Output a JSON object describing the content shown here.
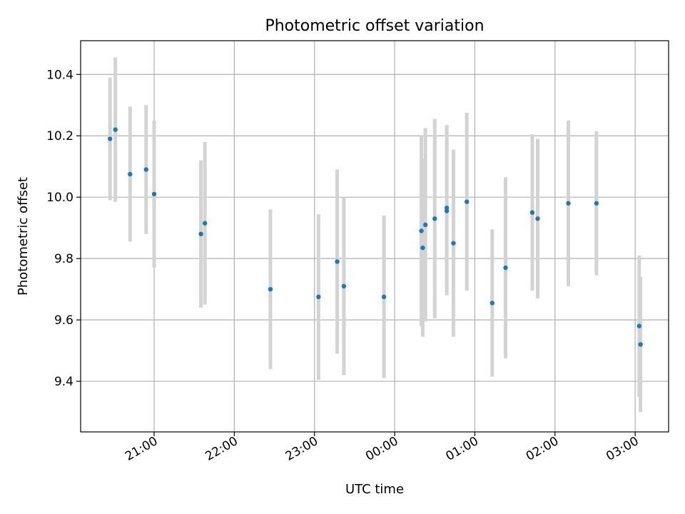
{
  "chart_data": {
    "type": "scatter",
    "title": "Photometric offset variation",
    "xlabel": "UTC time",
    "ylabel": "Photometric offset",
    "x_ticks": [
      "21:00",
      "22:00",
      "23:00",
      "00:00",
      "01:00",
      "02:00",
      "03:00"
    ],
    "y_ticks": [
      "9.4",
      "9.6",
      "9.8",
      "10.0",
      "10.2",
      "10.4"
    ],
    "xlim": [
      "20:05",
      "03:25"
    ],
    "ylim": [
      9.235,
      10.51
    ],
    "grid": true,
    "point_color": "#1f77b4",
    "errorbar_color": "#d3d3d3",
    "points": [
      {
        "x": "20:27",
        "y": 10.19,
        "yerr": 0.2
      },
      {
        "x": "20:31",
        "y": 10.22,
        "yerr": 0.235
      },
      {
        "x": "20:42",
        "y": 10.075,
        "yerr": 0.22
      },
      {
        "x": "20:54",
        "y": 10.09,
        "yerr": 0.21
      },
      {
        "x": "21:00",
        "y": 10.01,
        "yerr": 0.24
      },
      {
        "x": "21:35",
        "y": 9.88,
        "yerr": 0.24
      },
      {
        "x": "21:38",
        "y": 9.915,
        "yerr": 0.265
      },
      {
        "x": "22:27",
        "y": 9.7,
        "yerr": 0.26
      },
      {
        "x": "23:03",
        "y": 9.675,
        "yerr": 0.27
      },
      {
        "x": "23:17",
        "y": 9.79,
        "yerr": 0.3
      },
      {
        "x": "23:22",
        "y": 9.71,
        "yerr": 0.29
      },
      {
        "x": "23:52",
        "y": 9.675,
        "yerr": 0.265
      },
      {
        "x": "00:20",
        "y": 9.89,
        "yerr": 0.31
      },
      {
        "x": "00:21",
        "y": 9.835,
        "yerr": 0.29
      },
      {
        "x": "00:23",
        "y": 9.91,
        "yerr": 0.315
      },
      {
        "x": "00:30",
        "y": 9.93,
        "yerr": 0.325
      },
      {
        "x": "00:39",
        "y": 9.965,
        "yerr": 0.27
      },
      {
        "x": "00:39",
        "y": 9.955,
        "yerr": 0.275
      },
      {
        "x": "00:44",
        "y": 9.85,
        "yerr": 0.305
      },
      {
        "x": "00:54",
        "y": 9.985,
        "yerr": 0.29
      },
      {
        "x": "01:13",
        "y": 9.655,
        "yerr": 0.24
      },
      {
        "x": "01:23",
        "y": 9.77,
        "yerr": 0.295
      },
      {
        "x": "01:43",
        "y": 9.95,
        "yerr": 0.255
      },
      {
        "x": "01:47",
        "y": 9.93,
        "yerr": 0.26
      },
      {
        "x": "02:10",
        "y": 9.98,
        "yerr": 0.27
      },
      {
        "x": "02:31",
        "y": 9.98,
        "yerr": 0.235
      },
      {
        "x": "03:03",
        "y": 9.58,
        "yerr": 0.23
      },
      {
        "x": "03:04",
        "y": 9.52,
        "yerr": 0.22
      }
    ]
  }
}
